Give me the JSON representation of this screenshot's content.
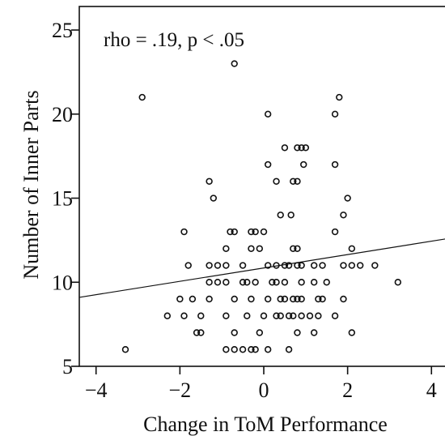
{
  "chart_data": {
    "type": "scatter",
    "title": "",
    "annotation": "rho = .19, p < .05",
    "xlabel": "Change in ToM Performance",
    "ylabel": "Number of Inner Parts",
    "xlim": [
      -4.4,
      4.4
    ],
    "ylim": [
      5,
      26.4
    ],
    "xticks": [
      -4,
      -2,
      0,
      2,
      4
    ],
    "xtick_labels": [
      "−4",
      "−2",
      "0",
      "2",
      "4"
    ],
    "yticks": [
      5,
      10,
      15,
      20,
      25
    ],
    "ytick_labels": [
      "5",
      "10",
      "15",
      "20",
      "25"
    ],
    "grid": false,
    "trend_line": {
      "x": [
        -4.4,
        4.4
      ],
      "y": [
        9.1,
        12.6
      ]
    },
    "points": [
      {
        "x": -0.7,
        "y": 23
      },
      {
        "x": -2.9,
        "y": 21
      },
      {
        "x": 0.1,
        "y": 20
      },
      {
        "x": 1.8,
        "y": 21
      },
      {
        "x": 1.7,
        "y": 20
      },
      {
        "x": 0.5,
        "y": 18
      },
      {
        "x": 0.8,
        "y": 18
      },
      {
        "x": 0.9,
        "y": 18
      },
      {
        "x": 1.0,
        "y": 18
      },
      {
        "x": 0.1,
        "y": 17
      },
      {
        "x": 0.95,
        "y": 17
      },
      {
        "x": 1.7,
        "y": 17
      },
      {
        "x": -1.3,
        "y": 16
      },
      {
        "x": 0.3,
        "y": 16
      },
      {
        "x": 0.7,
        "y": 16
      },
      {
        "x": 0.8,
        "y": 16
      },
      {
        "x": -1.2,
        "y": 15
      },
      {
        "x": 2.0,
        "y": 15
      },
      {
        "x": 0.4,
        "y": 14
      },
      {
        "x": 0.65,
        "y": 14
      },
      {
        "x": 1.9,
        "y": 14
      },
      {
        "x": -1.9,
        "y": 13
      },
      {
        "x": -0.8,
        "y": 13
      },
      {
        "x": -0.7,
        "y": 13
      },
      {
        "x": -0.3,
        "y": 13
      },
      {
        "x": -0.2,
        "y": 13
      },
      {
        "x": 0.0,
        "y": 13
      },
      {
        "x": 1.7,
        "y": 13
      },
      {
        "x": -0.9,
        "y": 12
      },
      {
        "x": -0.3,
        "y": 12
      },
      {
        "x": -0.1,
        "y": 12
      },
      {
        "x": 0.7,
        "y": 12
      },
      {
        "x": 0.8,
        "y": 12
      },
      {
        "x": 2.1,
        "y": 12
      },
      {
        "x": -1.8,
        "y": 11
      },
      {
        "x": -1.3,
        "y": 11
      },
      {
        "x": -1.1,
        "y": 11
      },
      {
        "x": -0.9,
        "y": 11
      },
      {
        "x": -0.5,
        "y": 11
      },
      {
        "x": 0.1,
        "y": 11
      },
      {
        "x": 0.3,
        "y": 11
      },
      {
        "x": 0.5,
        "y": 11
      },
      {
        "x": 0.6,
        "y": 11
      },
      {
        "x": 0.8,
        "y": 11
      },
      {
        "x": 0.9,
        "y": 11
      },
      {
        "x": 1.2,
        "y": 11
      },
      {
        "x": 1.4,
        "y": 11
      },
      {
        "x": 1.9,
        "y": 11
      },
      {
        "x": 2.1,
        "y": 11
      },
      {
        "x": 2.3,
        "y": 11
      },
      {
        "x": 2.65,
        "y": 11
      },
      {
        "x": -1.3,
        "y": 10
      },
      {
        "x": -1.1,
        "y": 10
      },
      {
        "x": -0.9,
        "y": 10
      },
      {
        "x": -0.5,
        "y": 10
      },
      {
        "x": -0.4,
        "y": 10
      },
      {
        "x": -0.2,
        "y": 10
      },
      {
        "x": 0.2,
        "y": 10
      },
      {
        "x": 0.3,
        "y": 10
      },
      {
        "x": 0.5,
        "y": 10
      },
      {
        "x": 0.9,
        "y": 10
      },
      {
        "x": 1.2,
        "y": 10
      },
      {
        "x": 1.5,
        "y": 10
      },
      {
        "x": 3.2,
        "y": 10
      },
      {
        "x": -2.0,
        "y": 9
      },
      {
        "x": -1.7,
        "y": 9
      },
      {
        "x": -1.3,
        "y": 9
      },
      {
        "x": -0.7,
        "y": 9
      },
      {
        "x": -0.3,
        "y": 9
      },
      {
        "x": 0.1,
        "y": 9
      },
      {
        "x": 0.4,
        "y": 9
      },
      {
        "x": 0.5,
        "y": 9
      },
      {
        "x": 0.7,
        "y": 9
      },
      {
        "x": 0.8,
        "y": 9
      },
      {
        "x": 0.9,
        "y": 9
      },
      {
        "x": 1.3,
        "y": 9
      },
      {
        "x": 1.4,
        "y": 9
      },
      {
        "x": 1.9,
        "y": 9
      },
      {
        "x": -2.3,
        "y": 8
      },
      {
        "x": -1.9,
        "y": 8
      },
      {
        "x": -1.5,
        "y": 8
      },
      {
        "x": -0.9,
        "y": 8
      },
      {
        "x": -0.4,
        "y": 8
      },
      {
        "x": 0.0,
        "y": 8
      },
      {
        "x": 0.3,
        "y": 8
      },
      {
        "x": 0.4,
        "y": 8
      },
      {
        "x": 0.6,
        "y": 8
      },
      {
        "x": 0.7,
        "y": 8
      },
      {
        "x": 0.9,
        "y": 8
      },
      {
        "x": 1.1,
        "y": 8
      },
      {
        "x": 1.3,
        "y": 8
      },
      {
        "x": 1.7,
        "y": 8
      },
      {
        "x": -1.6,
        "y": 7
      },
      {
        "x": -1.5,
        "y": 7
      },
      {
        "x": -0.7,
        "y": 7
      },
      {
        "x": -0.1,
        "y": 7
      },
      {
        "x": 0.8,
        "y": 7
      },
      {
        "x": 1.2,
        "y": 7
      },
      {
        "x": 2.1,
        "y": 7
      },
      {
        "x": -3.3,
        "y": 6
      },
      {
        "x": -0.9,
        "y": 6
      },
      {
        "x": -0.7,
        "y": 6
      },
      {
        "x": -0.5,
        "y": 6
      },
      {
        "x": -0.3,
        "y": 6
      },
      {
        "x": -0.2,
        "y": 6
      },
      {
        "x": 0.1,
        "y": 6
      },
      {
        "x": 0.6,
        "y": 6
      }
    ]
  }
}
